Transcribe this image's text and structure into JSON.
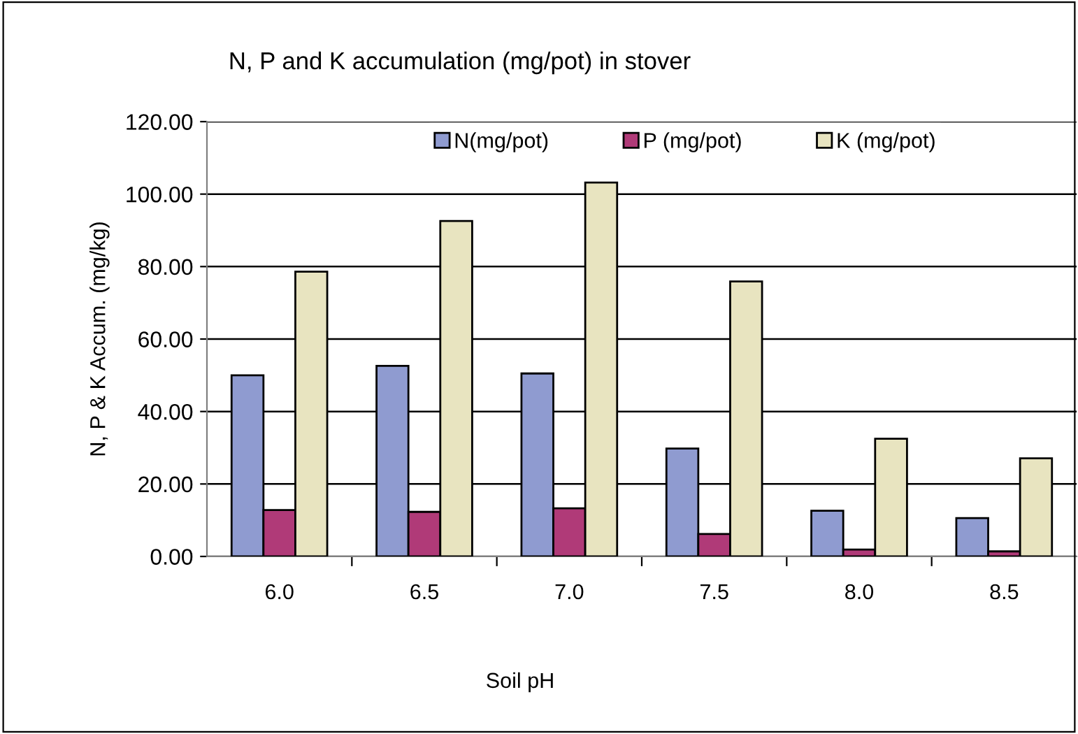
{
  "chart_data": {
    "type": "bar",
    "title": "N, P and K accumulation (mg/pot) in stover",
    "xlabel": "Soil pH",
    "ylabel": "N, P & K Accum. (mg/kg)",
    "categories": [
      "6.0",
      "6.5",
      "7.0",
      "7.5",
      "8.0",
      "8.5"
    ],
    "series": [
      {
        "name": "N(mg/pot)",
        "color": "#8f9bd0",
        "values": [
          50.0,
          52.6,
          50.5,
          29.8,
          12.6,
          10.6
        ]
      },
      {
        "name": "P (mg/pot)",
        "color": "#b03a78",
        "values": [
          12.8,
          12.3,
          13.3,
          6.2,
          1.9,
          1.4
        ]
      },
      {
        "name": "K (mg/pot)",
        "color": "#e8e4c0",
        "values": [
          78.6,
          92.6,
          103.2,
          75.9,
          32.5,
          27.1
        ]
      }
    ],
    "ylim": [
      0,
      120
    ],
    "yticks": [
      {
        "value": 0,
        "label": "0.00"
      },
      {
        "value": 20,
        "label": "20.00"
      },
      {
        "value": 40,
        "label": "40.00"
      },
      {
        "value": 60,
        "label": "60.00"
      },
      {
        "value": 80,
        "label": "80.00"
      },
      {
        "value": 100,
        "label": "100.00"
      },
      {
        "value": 120,
        "label": "120.00"
      }
    ],
    "grid": "y",
    "legend": "top"
  }
}
